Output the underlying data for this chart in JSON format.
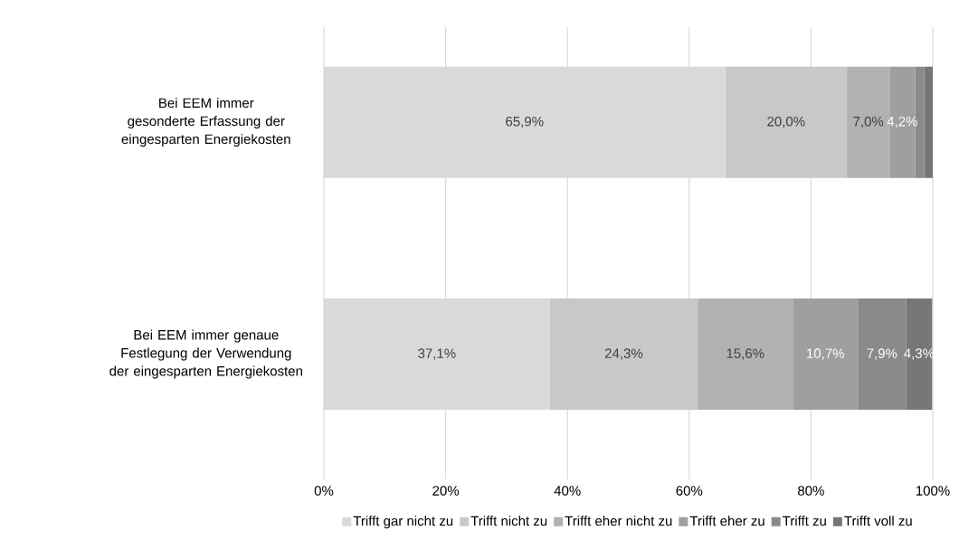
{
  "chart_data": {
    "type": "bar",
    "orientation": "horizontal",
    "stacked": true,
    "categories": [
      "Bei EEM immer gesonderte Erfassung der eingesparten Energiekosten",
      "Bei EEM immer genaue Festlegung der Verwendung der eingesparten Energiekosten"
    ],
    "series": [
      {
        "name": "Trifft gar nicht zu",
        "color": "#d9d9d9",
        "values": [
          65.9,
          37.1
        ],
        "value_labels": [
          "65,9%",
          "37,1%"
        ]
      },
      {
        "name": "Trifft nicht zu",
        "color": "#c8c8c8",
        "values": [
          20.0,
          24.3
        ],
        "value_labels": [
          "20,0%",
          "24,3%"
        ]
      },
      {
        "name": "Trifft eher nicht zu",
        "color": "#b2b2b2",
        "values": [
          7.0,
          15.6
        ],
        "value_labels": [
          "7,0%",
          "15,6%"
        ]
      },
      {
        "name": "Trifft eher zu",
        "color": "#9f9f9f",
        "values": [
          4.2,
          10.7
        ],
        "value_labels": [
          "4,2%",
          "10,7%"
        ]
      },
      {
        "name": "Trifft zu",
        "color": "#8a8a8a",
        "values": [
          1.5,
          7.9
        ],
        "value_labels": [
          null,
          "7,9%"
        ]
      },
      {
        "name": "Trifft voll zu",
        "color": "#777777",
        "values": [
          1.4,
          4.3
        ],
        "value_labels": [
          null,
          "4,3%"
        ]
      }
    ],
    "xlim": [
      0,
      100
    ],
    "xticks": [
      {
        "value": 0,
        "label": "0%"
      },
      {
        "value": 20,
        "label": "20%"
      },
      {
        "value": 40,
        "label": "40%"
      },
      {
        "value": 60,
        "label": "60%"
      },
      {
        "value": 80,
        "label": "80%"
      },
      {
        "value": 100,
        "label": "100%"
      }
    ],
    "grid": "x",
    "legend": "bottom"
  }
}
